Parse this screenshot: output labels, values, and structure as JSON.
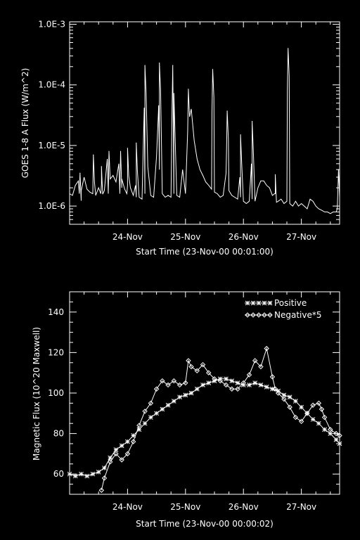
{
  "chart_data": [
    {
      "type": "line",
      "title": "",
      "xlabel": "Start Time (23-Nov-00 00:01:00)",
      "ylabel": "GOES 1-8 A Flux (W/m^2)",
      "yscale": "log",
      "xlim": [
        0,
        4.66
      ],
      "ylim": [
        5e-07,
        0.0011
      ],
      "x_tick_labels": [
        "24-Nov",
        "25-Nov",
        "26-Nov",
        "27-Nov"
      ],
      "x_tick_values": [
        1,
        2,
        3,
        4
      ],
      "y_tick_labels": [
        "1.0E-6",
        "1.0E-5",
        "1.0E-4",
        "1.0E-3"
      ],
      "y_tick_values": [
        1e-06,
        1e-05,
        0.0001,
        0.001
      ],
      "grid": false,
      "line_color": "#ffffff",
      "series": [
        {
          "x": [
            0.0,
            0.05,
            0.1,
            0.15,
            0.2,
            0.25,
            0.3,
            0.35,
            0.4,
            0.45,
            0.5,
            0.55,
            0.6,
            0.65,
            0.7,
            0.75,
            0.8,
            0.85,
            0.9,
            0.95,
            1.0,
            1.05,
            1.1,
            1.15,
            1.2,
            1.25,
            1.3,
            1.35,
            1.4,
            1.45,
            1.5,
            1.55,
            1.6,
            1.65,
            1.7,
            1.75,
            1.8,
            1.85,
            1.9,
            1.95,
            2.0,
            2.05,
            2.1,
            2.15,
            2.2,
            2.25,
            2.3,
            2.35,
            2.4,
            2.45,
            2.5,
            2.55,
            2.6,
            2.65,
            2.7,
            2.75,
            2.8,
            2.85,
            2.9,
            2.95,
            3.0,
            3.05,
            3.1,
            3.15,
            3.2,
            3.25,
            3.3,
            3.35,
            3.4,
            3.45,
            3.5,
            3.55,
            3.6,
            3.65,
            3.7,
            3.75,
            3.8,
            3.85,
            3.9,
            3.95,
            4.0,
            4.05,
            4.1,
            4.15,
            4.2,
            4.25,
            4.3,
            4.35,
            4.4,
            4.45,
            4.5,
            4.55,
            4.6,
            4.62,
            4.64,
            4.66
          ],
          "y": [
            1.6e-06,
            1.5e-06,
            2.2e-06,
            2.6e-06,
            1.8e-06,
            3e-06,
            1.9e-06,
            1.7e-06,
            1.6e-06,
            1.5e-06,
            2e-06,
            2.3e-06,
            1.8e-06,
            6e-06,
            2.8e-06,
            3.2e-06,
            2.5e-06,
            5e-06,
            2e-06,
            1.9e-06,
            2.2e-06,
            2e-06,
            1.5e-06,
            1.4e-06,
            1.4e-06,
            1.3e-06,
            1.6e-06,
            4.5e-06,
            1.5e-06,
            1.4e-06,
            6.5e-06,
            4e-06,
            1.6e-06,
            1.4e-06,
            1.5e-06,
            1.4e-06,
            1.6e-06,
            1.5e-06,
            1.4e-06,
            4e-06,
            1.6e-06,
            8e-05,
            4e-05,
            1.2e-05,
            6e-06,
            4e-06,
            3.2e-06,
            2.5e-06,
            2.2e-06,
            1.9e-06,
            1.7e-06,
            1.6e-06,
            1.4e-06,
            1.5e-06,
            3.5e-06,
            1.8e-06,
            1.5e-06,
            1.4e-06,
            1.3e-06,
            1.4e-06,
            1.2e-06,
            1.1e-06,
            1.2e-06,
            1.3e-06,
            1.2e-06,
            2e-06,
            2.6e-06,
            2.6e-06,
            2.2e-06,
            2e-06,
            1.5e-06,
            1.6e-06,
            1.2e-06,
            1.3e-06,
            1.1e-06,
            1.2e-06,
            1.1e-06,
            1e-06,
            1.2e-06,
            1e-06,
            1.1e-06,
            1e-06,
            9e-07,
            1.3e-06,
            1.2e-06,
            1e-06,
            9e-07,
            8.5e-07,
            8e-07,
            8e-07,
            7.5e-07,
            8e-07,
            8e-07,
            9e-07,
            4e-06,
            1.5e-06
          ]
        }
      ],
      "flare_peaks": [
        {
          "x": 0.18,
          "y": 3.5e-06
        },
        {
          "x": 0.41,
          "y": 7e-06
        },
        {
          "x": 0.55,
          "y": 4.5e-06
        },
        {
          "x": 0.68,
          "y": 8e-06
        },
        {
          "x": 0.88,
          "y": 8e-06
        },
        {
          "x": 1.0,
          "y": 9e-06
        },
        {
          "x": 1.15,
          "y": 1.1e-05
        },
        {
          "x": 1.3,
          "y": 0.00021
        },
        {
          "x": 1.55,
          "y": 0.00023
        },
        {
          "x": 1.78,
          "y": 0.00021
        },
        {
          "x": 2.05,
          "y": 8.5e-05
        },
        {
          "x": 2.47,
          "y": 0.00018
        },
        {
          "x": 2.72,
          "y": 3.7e-05
        },
        {
          "x": 2.95,
          "y": 1.5e-05
        },
        {
          "x": 3.15,
          "y": 2.5e-05
        },
        {
          "x": 3.55,
          "y": 3.3e-06
        },
        {
          "x": 3.77,
          "y": 0.0004
        },
        {
          "x": 4.64,
          "y": 4e-06
        }
      ]
    },
    {
      "type": "line",
      "title": "",
      "xlabel": "Start Time (23-Nov-00 00:00:02)",
      "ylabel": "Magnetic Flux (10^20 Maxwell)",
      "xlim": [
        0,
        4.66
      ],
      "ylim": [
        50,
        150
      ],
      "x_tick_labels": [
        "24-Nov",
        "25-Nov",
        "26-Nov",
        "27-Nov"
      ],
      "x_tick_values": [
        1,
        2,
        3,
        4
      ],
      "y_tick_labels": [
        "60",
        "80",
        "100",
        "120",
        "140"
      ],
      "y_tick_values": [
        60,
        80,
        100,
        120,
        140
      ],
      "grid": false,
      "legend_position": "top-right",
      "series": [
        {
          "name": "Positive",
          "marker": "asterisk",
          "x": [
            0.0,
            0.1,
            0.2,
            0.3,
            0.4,
            0.5,
            0.6,
            0.7,
            0.8,
            0.9,
            1.0,
            1.1,
            1.2,
            1.3,
            1.4,
            1.5,
            1.6,
            1.7,
            1.8,
            1.9,
            2.0,
            2.1,
            2.2,
            2.3,
            2.4,
            2.5,
            2.6,
            2.7,
            2.8,
            2.9,
            3.0,
            3.1,
            3.2,
            3.3,
            3.4,
            3.5,
            3.6,
            3.7,
            3.8,
            3.9,
            4.0,
            4.1,
            4.2,
            4.3,
            4.4,
            4.5,
            4.6,
            4.66
          ],
          "y": [
            60,
            59,
            60,
            59,
            60,
            61,
            63,
            68,
            72,
            74,
            76,
            79,
            82,
            85,
            88,
            90,
            92,
            94,
            96,
            98,
            99,
            100,
            102,
            104,
            105,
            106,
            107,
            107,
            106,
            105,
            104,
            104,
            105,
            104,
            103,
            102,
            101,
            99,
            98,
            96,
            93,
            90,
            87,
            85,
            82,
            80,
            77,
            75
          ]
        },
        {
          "name": "Negative*5",
          "marker": "diamond",
          "x": [
            0.55,
            0.6,
            0.7,
            0.8,
            0.9,
            1.0,
            1.1,
            1.2,
            1.3,
            1.4,
            1.5,
            1.6,
            1.7,
            1.8,
            1.9,
            2.0,
            2.05,
            2.1,
            2.2,
            2.3,
            2.4,
            2.5,
            2.6,
            2.7,
            2.8,
            2.9,
            3.0,
            3.1,
            3.2,
            3.3,
            3.4,
            3.5,
            3.55,
            3.6,
            3.7,
            3.8,
            3.9,
            4.0,
            4.1,
            4.2,
            4.3,
            4.35,
            4.4,
            4.5,
            4.6,
            4.66
          ],
          "y": [
            52,
            58,
            66,
            70,
            67,
            70,
            76,
            84,
            91,
            95,
            102,
            106,
            104,
            106,
            104,
            105,
            116,
            113,
            111,
            114,
            110,
            107,
            106,
            104,
            102,
            102,
            105,
            109,
            116,
            113,
            122,
            108,
            102,
            100,
            97,
            93,
            88,
            86,
            90,
            94,
            95,
            92,
            88,
            82,
            80,
            79
          ]
        }
      ]
    }
  ]
}
